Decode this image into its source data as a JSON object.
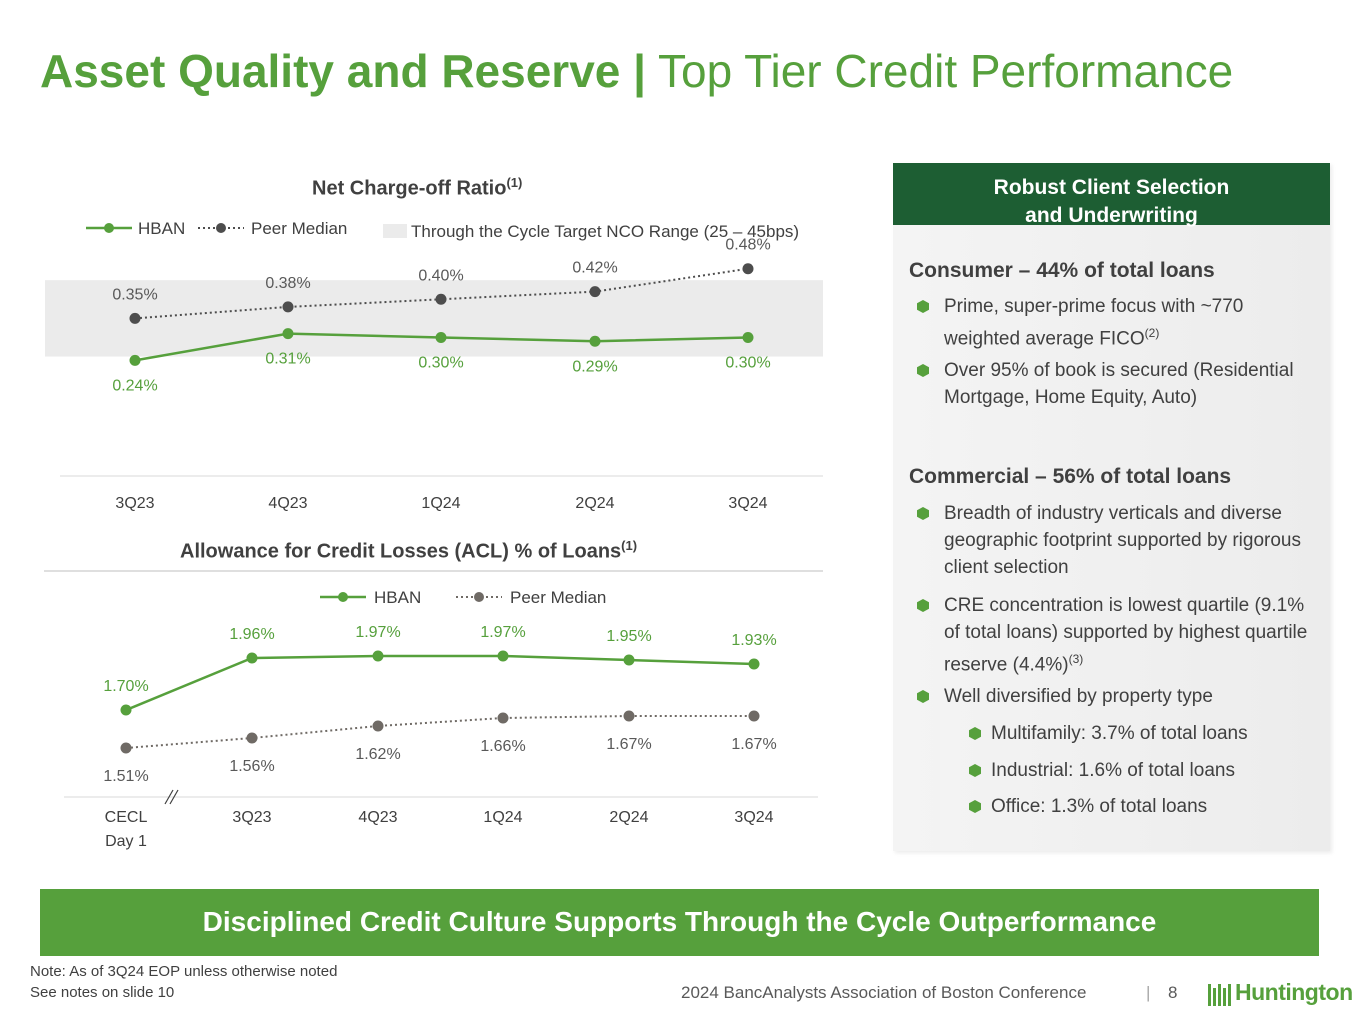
{
  "header": {
    "title_bold": "Asset Quality and Reserve",
    "title_sep": "|",
    "title_light": "Top Tier Credit Performance"
  },
  "chart_data": [
    {
      "type": "line",
      "title": "Net Charge-off Ratio",
      "title_note": "(1)",
      "categories": [
        "3Q23",
        "4Q23",
        "1Q24",
        "2Q24",
        "3Q24"
      ],
      "series": [
        {
          "name": "HBAN",
          "values": [
            0.24,
            0.31,
            0.3,
            0.29,
            0.3
          ],
          "labels": [
            "0.24%",
            "0.31%",
            "0.30%",
            "0.29%",
            "0.30%"
          ],
          "color": "#56a03c",
          "style": "solid"
        },
        {
          "name": "Peer Median",
          "values": [
            0.35,
            0.38,
            0.4,
            0.42,
            0.48
          ],
          "labels": [
            "0.35%",
            "0.38%",
            "0.40%",
            "0.42%",
            "0.48%"
          ],
          "color": "#4d4d4d",
          "style": "dotted"
        }
      ],
      "band": {
        "label": "Through the Cycle Target NCO Range (25 – 45bps)",
        "range": [
          0.25,
          0.45
        ],
        "color": "#ebebeb"
      },
      "ylim": [
        0.0,
        0.55
      ]
    },
    {
      "type": "line",
      "title": "Allowance for Credit Losses (ACL) % of Loans",
      "title_note": "(1)",
      "categories": [
        "CECL Day 1",
        "3Q23",
        "4Q23",
        "1Q24",
        "2Q24",
        "3Q24"
      ],
      "category_lines": [
        [
          "CECL",
          "Day 1"
        ],
        [
          "3Q23"
        ],
        [
          "4Q23"
        ],
        [
          "1Q24"
        ],
        [
          "2Q24"
        ],
        [
          "3Q24"
        ]
      ],
      "series": [
        {
          "name": "HBAN",
          "values": [
            1.7,
            1.96,
            1.97,
            1.97,
            1.95,
            1.93
          ],
          "labels": [
            "1.70%",
            "1.96%",
            "1.97%",
            "1.97%",
            "1.95%",
            "1.93%"
          ],
          "color": "#56a03c",
          "style": "solid"
        },
        {
          "name": "Peer Median",
          "values": [
            1.51,
            1.56,
            1.62,
            1.66,
            1.67,
            1.67
          ],
          "labels": [
            "1.51%",
            "1.56%",
            "1.62%",
            "1.66%",
            "1.67%",
            "1.67%"
          ],
          "color": "#6f6a65",
          "style": "dotted"
        }
      ],
      "axis_break_after": "CECL Day 1",
      "ylim": [
        1.2,
        2.1
      ]
    }
  ],
  "panel": {
    "header_line1": "Robust Client Selection",
    "header_line2": "and Underwriting",
    "consumer_title": "Consumer – 44% of total loans",
    "consumer_bullets": [
      {
        "text": "Prime, super-prime focus with ~770 weighted average FICO",
        "note": "(2)"
      },
      {
        "text": "Over 95% of book is secured (Residential Mortgage, Home Equity, Auto)"
      }
    ],
    "commercial_title": "Commercial – 56% of total loans",
    "commercial_bullets": [
      {
        "text": "Breadth of industry verticals and diverse geographic footprint supported by rigorous client selection"
      },
      {
        "text": "CRE concentration is lowest quartile (9.1% of total loans) supported by highest quartile reserve (4.4%)",
        "note": "(3)"
      },
      {
        "text": "Well diversified by property type"
      }
    ],
    "sub_bullets": [
      "Multifamily: 3.7% of total loans",
      "Industrial: 1.6% of total loans",
      "Office: 1.3% of total loans"
    ]
  },
  "banner": "Disciplined Credit Culture Supports Through the Cycle Outperformance",
  "notes": {
    "line1": "Note: As of 3Q24 EOP unless otherwise noted",
    "line2": "See notes on slide 10"
  },
  "footer": {
    "conference": "2024 BancAnalysts Association of Boston Conference",
    "divider": "|",
    "page": "8",
    "logo": "Huntington"
  },
  "colors": {
    "brand_green": "#56a03c",
    "dark_green": "#1d5e33"
  }
}
